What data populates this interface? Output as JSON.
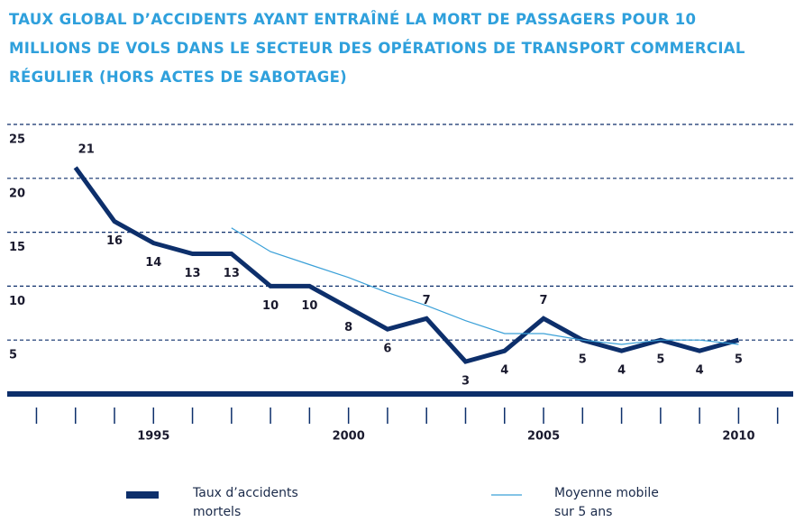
{
  "chart_data": {
    "type": "line",
    "title": "TAUX GLOBAL D’ACCIDENTS AYANT ENTRAÎNÉ LA MORT DE PASSAGERS POUR 10 MILLIONS DE VOLS DANS LE SECTEUR DES OPÉRATIONS DE TRANSPORT COMMERCIAL RÉGULIER (HORS ACTES DE SABOTAGE)",
    "x": [
      1993,
      1994,
      1995,
      1996,
      1997,
      1998,
      1999,
      2000,
      2001,
      2002,
      2003,
      2004,
      2005,
      2006,
      2007,
      2008,
      2009,
      2010
    ],
    "series": [
      {
        "name": "Taux d’accidents mortels",
        "color": "#0d2f6b",
        "values": [
          21,
          16,
          14,
          13,
          13,
          10,
          10,
          8,
          6,
          7,
          3,
          4,
          7,
          5,
          4,
          5,
          4,
          5
        ],
        "show_value_labels": true
      },
      {
        "name": "Moyenne mobile sur 5 ans",
        "color": "#3aa0d8",
        "values": [
          null,
          null,
          null,
          null,
          15.4,
          13.2,
          12,
          10.8,
          9.4,
          8.2,
          6.8,
          5.6,
          5.6,
          5,
          4.6,
          5,
          5,
          4.6
        ]
      }
    ],
    "xlim": [
      1991.25,
      2011.4
    ],
    "xticks": [
      1995,
      2000,
      2005,
      2010
    ],
    "xminor_ticks": [
      1992,
      1993,
      1994,
      1995,
      1996,
      1997,
      1998,
      1999,
      2000,
      2001,
      2002,
      2003,
      2004,
      2005,
      2006,
      2007,
      2008,
      2009,
      2010,
      2011
    ],
    "ylim": [
      0,
      25
    ],
    "yticks": [
      5,
      10,
      15,
      20,
      25
    ],
    "grid": true,
    "legend": "bottom"
  }
}
